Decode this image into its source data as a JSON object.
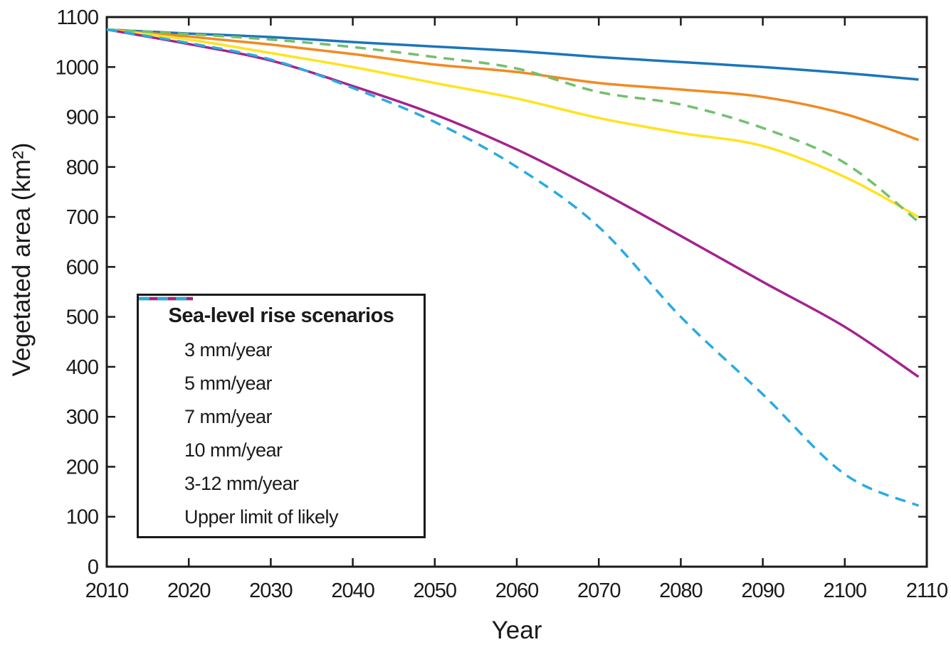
{
  "page": {
    "background": "#ffffff"
  },
  "chart_data": {
    "type": "line",
    "title": "",
    "xlabel": "Year",
    "ylabel": "Vegetated area (km²)",
    "xlim": [
      2010,
      2110
    ],
    "ylim": [
      0,
      1100
    ],
    "x_ticks": [
      2010,
      2020,
      2030,
      2040,
      2050,
      2060,
      2070,
      2080,
      2090,
      2100,
      2110
    ],
    "y_ticks": [
      0,
      100,
      200,
      300,
      400,
      500,
      600,
      700,
      800,
      900,
      1000,
      1100
    ],
    "grid": false,
    "axis_color": "#1a1a1a",
    "legend": {
      "title": "Sea-level rise scenarios",
      "position": "lower-left"
    },
    "x": [
      2010,
      2020,
      2030,
      2040,
      2050,
      2060,
      2070,
      2080,
      2090,
      2100,
      2109
    ],
    "series": [
      {
        "name": "3 mm/year",
        "color": "#1B75BC",
        "style": "solid",
        "values": [
          1075,
          1067,
          1060,
          1050,
          1041,
          1032,
          1020,
          1010,
          1000,
          988,
          975
        ]
      },
      {
        "name": "5 mm/year",
        "color": "#F18A21",
        "style": "solid",
        "values": [
          1075,
          1061,
          1045,
          1026,
          1005,
          990,
          968,
          955,
          940,
          906,
          854
        ]
      },
      {
        "name": "7 mm/year",
        "color": "#FFE320",
        "style": "solid",
        "values": [
          1075,
          1055,
          1028,
          1000,
          968,
          937,
          898,
          868,
          842,
          780,
          700
        ]
      },
      {
        "name": "10 mm/year",
        "color": "#A3238E",
        "style": "solid",
        "values": [
          1075,
          1046,
          1013,
          962,
          905,
          835,
          752,
          662,
          570,
          480,
          380
        ]
      },
      {
        "name": "3-12 mm/year",
        "color": "#72BF6E",
        "style": "dashed",
        "values": [
          1075,
          1066,
          1055,
          1040,
          1020,
          997,
          950,
          925,
          878,
          808,
          690
        ]
      },
      {
        "name": "Upper limit of likely",
        "color": "#29ABE2",
        "style": "dashed",
        "values": [
          1075,
          1048,
          1015,
          958,
          890,
          800,
          680,
          500,
          345,
          185,
          122
        ]
      }
    ]
  }
}
